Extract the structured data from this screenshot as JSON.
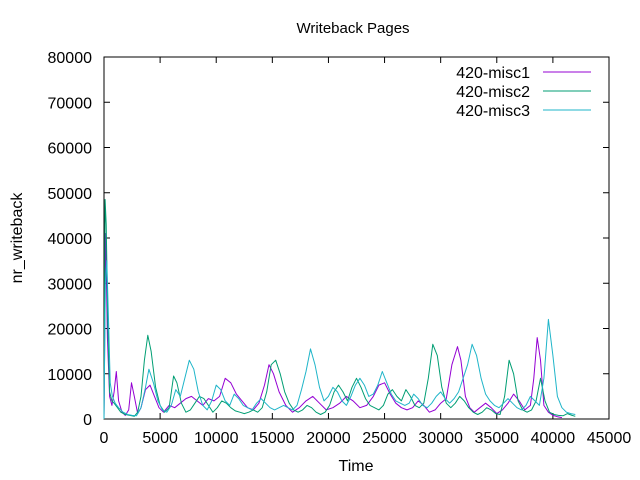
{
  "chart_data": {
    "type": "line",
    "title": "Writeback Pages",
    "xlabel": "Time",
    "ylabel": "nr_writeback",
    "xlim": [
      0,
      45000
    ],
    "ylim": [
      0,
      80000
    ],
    "xticks": [
      0,
      5000,
      10000,
      15000,
      20000,
      25000,
      30000,
      35000,
      40000,
      45000
    ],
    "yticks": [
      0,
      10000,
      20000,
      30000,
      40000,
      50000,
      60000,
      70000,
      80000
    ],
    "grid": false,
    "legend": "top-right",
    "series": [
      {
        "name": "420-misc1",
        "color": "#9400d3",
        "x": [
          0,
          150,
          300,
          500,
          700,
          900,
          1100,
          1300,
          1600,
          1900,
          2200,
          2450,
          2700,
          3000,
          3300,
          3700,
          4100,
          4500,
          4900,
          5300,
          5800,
          6300,
          6800,
          7300,
          7800,
          8300,
          8800,
          9300,
          9800,
          10300,
          10800,
          11300,
          11800,
          12300,
          12800,
          13300,
          13800,
          14300,
          14700,
          15100,
          15600,
          16200,
          16800,
          17400,
          18000,
          18600,
          19200,
          19800,
          20400,
          21000,
          21600,
          22200,
          22800,
          23400,
          24000,
          24500,
          25000,
          25500,
          26000,
          26500,
          27000,
          27500,
          28000,
          28500,
          29000,
          29500,
          30000,
          30500,
          31000,
          31500,
          31800,
          32200,
          32600,
          33000,
          33500,
          34000,
          34500,
          35000,
          35500,
          36000,
          36500,
          37000,
          37500,
          38000,
          38300,
          38600,
          38900,
          39200,
          39600,
          40000,
          40400,
          40800
        ],
        "y": [
          0,
          41000,
          18000,
          5000,
          3000,
          6000,
          10500,
          4000,
          1500,
          800,
          2000,
          8000,
          5000,
          1200,
          2500,
          6500,
          7500,
          5000,
          2500,
          1500,
          3000,
          2500,
          3500,
          4500,
          5000,
          4000,
          3000,
          4500,
          4000,
          5000,
          9000,
          8000,
          5500,
          4000,
          2500,
          2000,
          3500,
          7500,
          12000,
          10000,
          6000,
          3000,
          1500,
          2500,
          4000,
          5000,
          3500,
          2000,
          2500,
          3500,
          5000,
          4000,
          2500,
          3000,
          5000,
          7500,
          8000,
          5500,
          3500,
          2500,
          2000,
          2500,
          4000,
          3000,
          1500,
          2000,
          3500,
          4500,
          12000,
          16000,
          13000,
          5000,
          2500,
          1500,
          2500,
          3500,
          2500,
          1200,
          2000,
          3500,
          5500,
          4000,
          2000,
          3000,
          9000,
          18000,
          13000,
          3000,
          1500,
          800,
          500,
          300
        ]
      },
      {
        "name": "420-misc2",
        "color": "#009e73",
        "x": [
          0,
          100,
          200,
          350,
          500,
          700,
          900,
          1200,
          1500,
          1900,
          2300,
          2700,
          3000,
          3300,
          3600,
          3900,
          4200,
          4600,
          5000,
          5400,
          5800,
          6200,
          6500,
          6900,
          7300,
          7700,
          8100,
          8500,
          8900,
          9300,
          9700,
          10100,
          10500,
          10900,
          11300,
          11700,
          12100,
          12500,
          12900,
          13300,
          13700,
          14100,
          14500,
          14900,
          15300,
          15700,
          16100,
          16500,
          16900,
          17300,
          17700,
          18100,
          18500,
          18900,
          19300,
          19700,
          20100,
          20500,
          20900,
          21300,
          21700,
          22100,
          22500,
          22900,
          23300,
          23700,
          24100,
          24500,
          24900,
          25300,
          25700,
          26100,
          26500,
          26900,
          27300,
          27700,
          28100,
          28500,
          28900,
          29300,
          29700,
          30100,
          30500,
          30900,
          31300,
          31700,
          32100,
          32500,
          32900,
          33300,
          33700,
          34100,
          34500,
          34900,
          35300,
          35700,
          36100,
          36500,
          36900,
          37300,
          37700,
          38100,
          38500,
          38900,
          39300,
          39700,
          40100,
          40500,
          40900,
          41300,
          41700,
          42000
        ],
        "y": [
          0,
          48500,
          43000,
          20000,
          6000,
          4000,
          3500,
          2500,
          1500,
          1000,
          800,
          600,
          1500,
          5000,
          13000,
          18500,
          15000,
          7000,
          3000,
          1500,
          2500,
          9500,
          8000,
          3500,
          1500,
          2000,
          3500,
          5000,
          4500,
          3000,
          1500,
          2500,
          4000,
          3500,
          2500,
          1800,
          1500,
          1200,
          1500,
          2000,
          1500,
          2500,
          6000,
          12000,
          13000,
          10000,
          6000,
          3500,
          2000,
          1500,
          2000,
          3000,
          2500,
          1500,
          1000,
          1500,
          3000,
          6000,
          7500,
          6000,
          4000,
          7000,
          9000,
          7000,
          4500,
          3000,
          2500,
          2000,
          3000,
          5500,
          6500,
          5000,
          4000,
          6500,
          5000,
          3000,
          2500,
          3500,
          9000,
          16500,
          14000,
          7000,
          3500,
          2500,
          3500,
          5000,
          4000,
          2500,
          1500,
          1000,
          1500,
          2500,
          2000,
          1200,
          1000,
          5000,
          13000,
          10000,
          4000,
          2000,
          1500,
          2000,
          4000,
          9000,
          4000,
          1500,
          1000,
          800,
          700,
          1200,
          800,
          600
        ]
      },
      {
        "name": "420-misc3",
        "color": "#1fb5c9",
        "x": [
          0,
          120,
          250,
          400,
          550,
          750,
          1000,
          1300,
          1700,
          2100,
          2500,
          2900,
          3300,
          3700,
          4000,
          4400,
          4800,
          5200,
          5600,
          6000,
          6400,
          6800,
          7200,
          7600,
          8000,
          8400,
          8800,
          9200,
          9600,
          10000,
          10400,
          10800,
          11200,
          11600,
          12000,
          12400,
          12800,
          13200,
          13600,
          14000,
          14400,
          14800,
          15200,
          15600,
          16000,
          16400,
          16800,
          17200,
          17600,
          18000,
          18400,
          18800,
          19200,
          19600,
          20000,
          20400,
          20800,
          21200,
          21600,
          22000,
          22400,
          22800,
          23200,
          23600,
          24000,
          24400,
          24800,
          25200,
          25600,
          26000,
          26400,
          26800,
          27200,
          27600,
          28000,
          28400,
          28800,
          29200,
          29600,
          30000,
          30400,
          30800,
          31200,
          31600,
          32000,
          32400,
          32800,
          33200,
          33600,
          34000,
          34400,
          34800,
          35200,
          35600,
          36000,
          36400,
          36800,
          37200,
          37600,
          38000,
          38400,
          38800,
          39200,
          39600,
          40000,
          40400,
          40800,
          41200,
          41600,
          42000
        ],
        "y": [
          0,
          30000,
          35000,
          22000,
          8000,
          5000,
          3500,
          2500,
          1500,
          1000,
          800,
          700,
          2500,
          7000,
          11000,
          8000,
          4000,
          2000,
          1500,
          3000,
          6500,
          5000,
          9000,
          13000,
          11000,
          6000,
          3000,
          2000,
          4000,
          7500,
          6500,
          4000,
          3000,
          5500,
          4500,
          3000,
          2500,
          2000,
          3500,
          4500,
          3500,
          2500,
          2000,
          2500,
          3000,
          2500,
          2000,
          3000,
          6500,
          10500,
          15500,
          12000,
          7000,
          4000,
          5000,
          7000,
          6000,
          4000,
          3000,
          5000,
          7500,
          9000,
          7500,
          5000,
          5500,
          7500,
          10500,
          8000,
          5500,
          4000,
          3500,
          3000,
          3500,
          5500,
          4500,
          3000,
          2500,
          3500,
          5000,
          6000,
          4500,
          3500,
          4500,
          6000,
          9000,
          12000,
          16500,
          14000,
          9000,
          5500,
          4000,
          3000,
          2500,
          3500,
          4500,
          3500,
          2500,
          2000,
          3000,
          5000,
          4000,
          3000,
          9000,
          22000,
          14000,
          5000,
          2500,
          1500,
          1200,
          1000
        ]
      }
    ]
  }
}
